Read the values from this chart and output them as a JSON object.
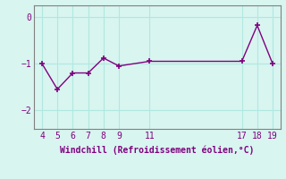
{
  "x": [
    4,
    5,
    6,
    7,
    8,
    9,
    11,
    17,
    18,
    19
  ],
  "y": [
    -1.0,
    -1.55,
    -1.2,
    -1.2,
    -0.88,
    -1.05,
    -0.95,
    -0.95,
    -0.18,
    -1.0
  ],
  "line_color": "#800080",
  "marker": "+",
  "marker_color": "#800080",
  "bg_color": "#d8f5f0",
  "grid_color": "#b0e8e0",
  "xlabel": "Windchill (Refroidissement éolien,°C)",
  "xlabel_color": "#800080",
  "tick_color": "#800080",
  "spine_color": "#808080",
  "ylim": [
    -2.4,
    0.25
  ],
  "xlim": [
    3.5,
    19.5
  ],
  "yticks": [
    0,
    -1,
    -2
  ],
  "xticks": [
    4,
    5,
    6,
    7,
    8,
    9,
    11,
    17,
    18,
    19
  ]
}
